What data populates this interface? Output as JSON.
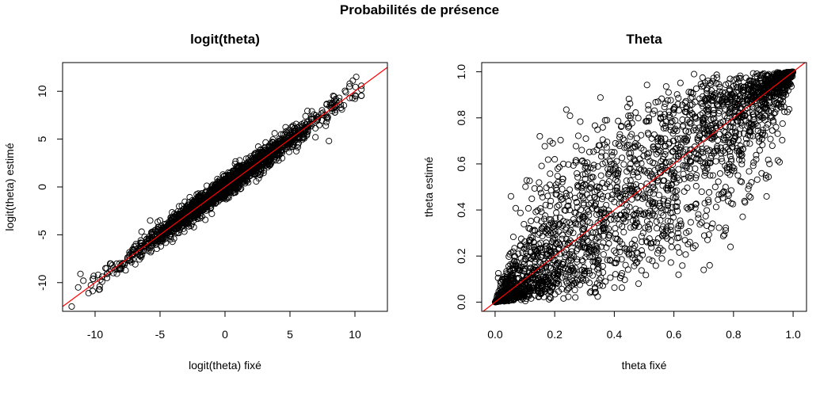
{
  "figure": {
    "title": "Probabilités de présence"
  },
  "chart_data": [
    {
      "type": "scatter",
      "title": "logit(theta)",
      "xlabel": "logit(theta) fixé",
      "ylabel": "logit(theta) estimé",
      "xlim": [
        -12.5,
        12.5
      ],
      "ylim": [
        -13,
        13
      ],
      "xticks": [
        -10,
        -5,
        0,
        5,
        10
      ],
      "yticks": [
        -10,
        -5,
        0,
        5,
        10
      ],
      "xtick_labels": [
        "-10",
        "-5",
        "0",
        "5",
        "10"
      ],
      "ytick_labels": [
        "-10",
        "-5",
        "0",
        "5",
        "10"
      ],
      "grid": false,
      "reference_line": {
        "slope": 1,
        "intercept": 0,
        "color": "#ff0000"
      },
      "point_color": "#000000",
      "range_x": [
        -12,
        10.5
      ],
      "range_y": [
        -12.5,
        11.5
      ],
      "spread_sd": 0.6,
      "series": [
        {
          "x": [
            -11.8,
            -11.3,
            -10.9,
            -10.5,
            -10.1,
            -9.6,
            -9.2,
            -8.6,
            -8.0,
            -7.3,
            -6.5,
            -5.8,
            -5.0,
            -4.1,
            -3.2,
            -2.4,
            -1.5,
            -0.6,
            0.3,
            1.2,
            2.1,
            3.0,
            3.9,
            4.8,
            5.6,
            6.4,
            7.1,
            7.8,
            8.4,
            8.9,
            9.3,
            9.8,
            10.1,
            9.6,
            9.0,
            8.0,
            6.2
          ],
          "y": [
            -12.5,
            -10.5,
            -9.8,
            -11.1,
            -9.3,
            -9.7,
            -8.5,
            -9.0,
            -8.6,
            -7.0,
            -6.8,
            -5.4,
            -5.3,
            -3.9,
            -3.4,
            -2.1,
            -1.7,
            -0.3,
            0.6,
            1.0,
            2.4,
            2.8,
            4.2,
            4.5,
            5.9,
            6.1,
            7.3,
            7.5,
            8.8,
            8.6,
            9.9,
            9.3,
            11.5,
            10.8,
            8.1,
            4.8,
            7.4
          ]
        }
      ]
    },
    {
      "type": "scatter",
      "title": "Theta",
      "xlabel": "theta fixé",
      "ylabel": "theta estimé",
      "xlim": [
        -0.045,
        1.045
      ],
      "ylim": [
        -0.04,
        1.04
      ],
      "xticks": [
        0.0,
        0.2,
        0.4,
        0.6,
        0.8,
        1.0
      ],
      "yticks": [
        0.0,
        0.2,
        0.4,
        0.6,
        0.8,
        1.0
      ],
      "xtick_labels": [
        "0.0",
        "0.2",
        "0.4",
        "0.6",
        "0.8",
        "1.0"
      ],
      "ytick_labels": [
        "0.0",
        "0.2",
        "0.4",
        "0.6",
        "0.8",
        "1.0"
      ],
      "grid": false,
      "reference_line": {
        "slope": 1,
        "intercept": 0,
        "color": "#ff0000"
      },
      "point_color": "#000000",
      "range_x": [
        0.0,
        1.0
      ],
      "range_y": [
        0.0,
        1.0
      ],
      "spread_sd": 0.6,
      "series": [
        {
          "x": [
            0.0,
            0.02,
            0.05,
            0.1,
            0.15,
            0.2,
            0.25,
            0.3,
            0.35,
            0.4,
            0.45,
            0.5,
            0.55,
            0.6,
            0.65,
            0.7,
            0.75,
            0.8,
            0.85,
            0.9,
            0.95,
            1.0,
            0.15,
            0.2,
            0.7,
            0.72,
            0.79,
            0.86
          ],
          "y": [
            0.0,
            0.02,
            0.1,
            0.08,
            0.3,
            0.22,
            0.4,
            0.28,
            0.5,
            0.36,
            0.58,
            0.46,
            0.66,
            0.55,
            0.74,
            0.63,
            0.82,
            0.7,
            0.9,
            0.8,
            0.96,
            1.0,
            0.72,
            0.62,
            0.14,
            0.16,
            0.24,
            0.52
          ]
        }
      ]
    }
  ]
}
